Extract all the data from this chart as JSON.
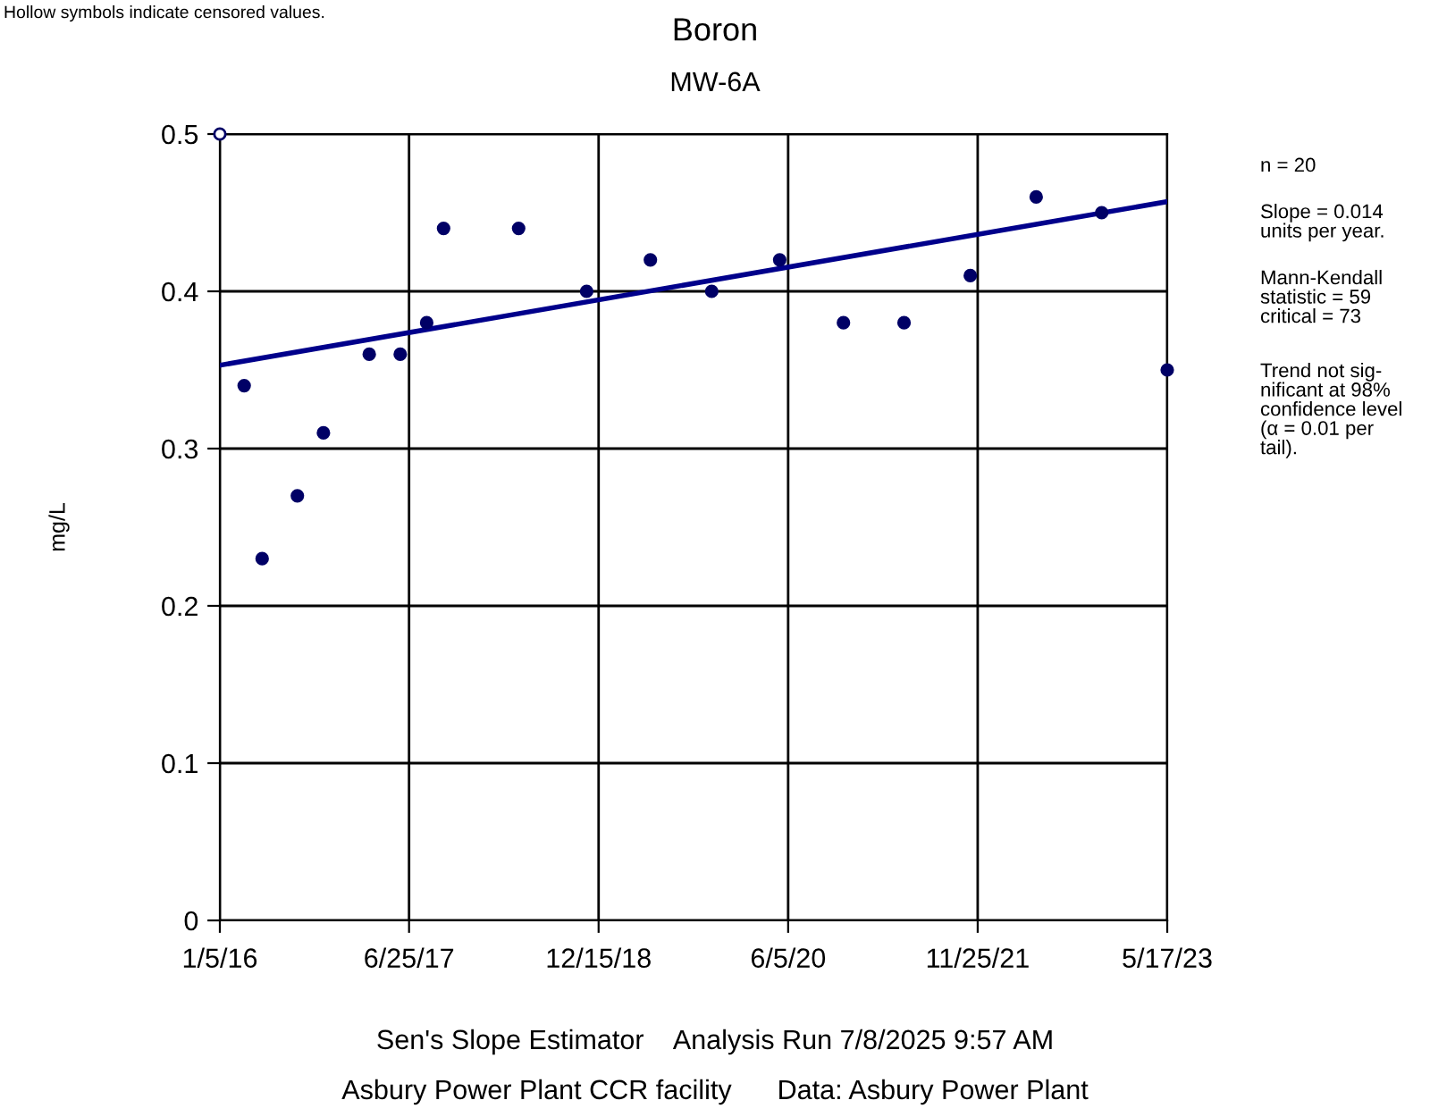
{
  "chart_data": {
    "type": "scatter",
    "title": "Boron",
    "subtitle": "MW-6A",
    "ylabel": "mg/L",
    "xlim": [
      "2016-01-05",
      "2023-05-17"
    ],
    "xticks": [
      {
        "value": "2016-01-05",
        "label": "1/5/16"
      },
      {
        "value": "2017-06-25",
        "label": "6/25/17"
      },
      {
        "value": "2018-12-15",
        "label": "12/15/18"
      },
      {
        "value": "2020-06-05",
        "label": "6/5/20"
      },
      {
        "value": "2021-11-25",
        "label": "11/25/21"
      },
      {
        "value": "2023-05-17",
        "label": "5/17/23"
      }
    ],
    "ylim": [
      0,
      0.5
    ],
    "yticks": [
      0,
      0.1,
      0.2,
      0.3,
      0.4,
      0.5
    ],
    "grid": true,
    "marker": "circle",
    "series": [
      {
        "color": "#000066",
        "x": [
          "2016-03-14",
          "2016-05-04",
          "2016-08-12",
          "2016-10-25",
          "2017-03-04",
          "2017-05-31",
          "2017-08-14",
          "2017-10-01",
          "2018-05-02",
          "2018-11-11",
          "2019-05-11",
          "2019-11-01",
          "2020-05-12",
          "2020-11-09",
          "2021-04-30",
          "2021-11-04",
          "2022-05-10",
          "2022-11-12",
          "2023-05-17"
        ],
        "values": [
          0.34,
          0.23,
          0.27,
          0.31,
          0.36,
          0.36,
          0.38,
          0.44,
          0.44,
          0.4,
          0.42,
          0.4,
          0.42,
          0.38,
          0.38,
          0.41,
          0.46,
          0.45,
          0.35
        ]
      },
      {
        "color": "#000066",
        "x": [
          "2016-01-05"
        ],
        "values": [
          0.5
        ]
      },
      {
        "type": "line",
        "color": "#00008b",
        "marker": "none",
        "line_style": "solid",
        "x": [
          "2016-01-05",
          "2023-05-17"
        ],
        "values": [
          0.353,
          0.457
        ]
      }
    ],
    "annotations": [
      "Hollow symbols indicate censored values.",
      "n = 20",
      "Slope = 0.014\nunits per year.",
      "Mann-Kendall\nstatistic = 59\ncritical = 73",
      "Trend not sig-\nnificant at 98%\nconfidence level\n(α = 0.01 per\ntail).",
      "Sen's Slope Estimator    Analysis Run 7/8/2025 9:57 AM",
      "Asbury Power Plant CCR facility      Data: Asbury Power Plant"
    ]
  }
}
